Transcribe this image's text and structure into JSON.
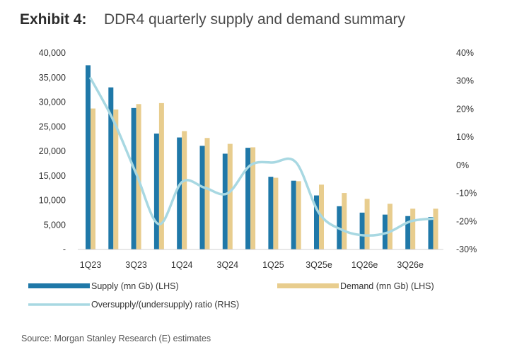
{
  "header": {
    "exhibit_label": "Exhibit 4:",
    "title": "DDR4 quarterly supply and demand summary"
  },
  "footer": {
    "source": "Source: Morgan Stanley Research (E) estimates"
  },
  "colors": {
    "supply": "#1f78a8",
    "demand": "#e8cd8e",
    "ratio": "#a8d8e2"
  },
  "chart_data": {
    "type": "bar",
    "quarters": [
      "1Q23",
      "2Q23",
      "3Q23",
      "4Q23",
      "1Q24",
      "2Q24",
      "3Q24",
      "4Q24",
      "1Q25",
      "2Q25",
      "3Q25e",
      "4Q25e",
      "1Q26e",
      "2Q26e",
      "3Q26e",
      "4Q26e"
    ],
    "x_tick_labels": [
      "1Q23",
      "",
      "3Q23",
      "",
      "1Q24",
      "",
      "3Q24",
      "",
      "1Q25",
      "",
      "3Q25e",
      "",
      "1Q26e",
      "",
      "3Q26e",
      ""
    ],
    "series": [
      {
        "name": "Supply (mn Gb) (LHS)",
        "axis": "left",
        "kind": "bar",
        "values": [
          37500,
          33000,
          28800,
          23600,
          22800,
          21100,
          19500,
          20700,
          14800,
          14000,
          11000,
          8800,
          7500,
          7100,
          6800,
          6600
        ]
      },
      {
        "name": "Demand (mn Gb) (LHS)",
        "axis": "left",
        "kind": "bar",
        "values": [
          28700,
          28500,
          29600,
          29800,
          24100,
          22700,
          21500,
          20800,
          14600,
          13900,
          13200,
          11500,
          10300,
          9300,
          8300,
          8300
        ]
      },
      {
        "name": "Oversupply/(undersupply) ratio (RHS)",
        "axis": "right",
        "kind": "line",
        "values": [
          31,
          16,
          -3,
          -21,
          -6,
          -8,
          -10,
          0,
          1,
          1,
          -17,
          -23,
          -25,
          -24,
          -20,
          -19
        ]
      }
    ],
    "y_left": {
      "min": 0,
      "max": 40000,
      "ticks": [
        "-",
        "5,000",
        "10,000",
        "15,000",
        "20,000",
        "25,000",
        "30,000",
        "35,000",
        "40,000"
      ]
    },
    "y_right": {
      "min": -30,
      "max": 40,
      "ticks": [
        "-30%",
        "-20%",
        "-10%",
        "0%",
        "10%",
        "20%",
        "30%",
        "40%"
      ]
    },
    "legend_position": "bottom"
  }
}
